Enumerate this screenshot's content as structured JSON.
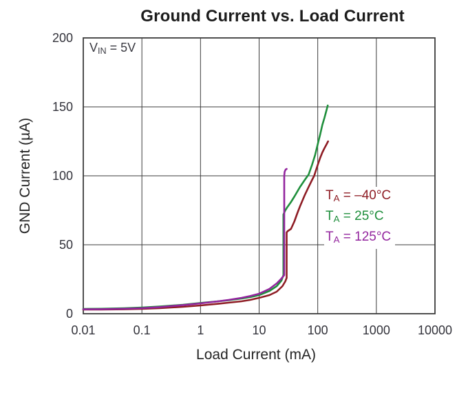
{
  "page": {
    "background": "#ffffff"
  },
  "chart_data": {
    "type": "line",
    "title": "Ground Current vs. Load Current",
    "xlabel": "Load Current (mA)",
    "ylabel": "GND Current (µA)",
    "x_scale": "log",
    "xlim": [
      0.01,
      10000
    ],
    "ylim": [
      0,
      200
    ],
    "x_ticks": [
      0.01,
      0.1,
      1,
      10,
      100,
      1000,
      10000
    ],
    "x_tick_labels": [
      "0.01",
      "0.1",
      "1",
      "10",
      "100",
      "1000",
      "10000"
    ],
    "y_ticks": [
      0,
      50,
      100,
      150,
      200
    ],
    "y_tick_labels": [
      "0",
      "50",
      "100",
      "150",
      "200"
    ],
    "grid": true,
    "legend_position": "inside-right",
    "annotation": {
      "base": "V",
      "sub": "IN",
      "rest": " = 5V"
    },
    "colors": {
      "grid": "#3b3b3b",
      "frame": "#3b3b3b",
      "title_text": "#1c1c1c",
      "axis_text": "#32323a"
    },
    "series": [
      {
        "id": "ta-minus-40",
        "label": {
          "base": "T",
          "sub": "A",
          "rest": " = –40°C"
        },
        "color": "#8e1c24",
        "points": [
          [
            0.01,
            3
          ],
          [
            0.02,
            3
          ],
          [
            0.05,
            3.2
          ],
          [
            0.1,
            3.5
          ],
          [
            0.2,
            4
          ],
          [
            0.5,
            5
          ],
          [
            1,
            6
          ],
          [
            2,
            7.2
          ],
          [
            3,
            8
          ],
          [
            5,
            9
          ],
          [
            7,
            10
          ],
          [
            10,
            11.5
          ],
          [
            15,
            13.5
          ],
          [
            20,
            16
          ],
          [
            25,
            20
          ],
          [
            28,
            23.5
          ],
          [
            29.5,
            26
          ],
          [
            29.5,
            59
          ],
          [
            31,
            60
          ],
          [
            35,
            61.5
          ],
          [
            40,
            67
          ],
          [
            45,
            73
          ],
          [
            50,
            78
          ],
          [
            60,
            86
          ],
          [
            70,
            92
          ],
          [
            80,
            97
          ],
          [
            87,
            100
          ],
          [
            100,
            108
          ],
          [
            110,
            113
          ],
          [
            120,
            117
          ],
          [
            130,
            120
          ],
          [
            140,
            122.5
          ],
          [
            150,
            125
          ]
        ]
      },
      {
        "id": "ta-25",
        "label": {
          "base": "T",
          "sub": "A",
          "rest": " = 25°C"
        },
        "color": "#1f8f3c",
        "points": [
          [
            0.01,
            3.5
          ],
          [
            0.02,
            3.6
          ],
          [
            0.05,
            4
          ],
          [
            0.1,
            4.5
          ],
          [
            0.2,
            5.2
          ],
          [
            0.5,
            6.5
          ],
          [
            1,
            7.8
          ],
          [
            2,
            9
          ],
          [
            3,
            9.8
          ],
          [
            5,
            11
          ],
          [
            7,
            12
          ],
          [
            10,
            13.5
          ],
          [
            15,
            16.5
          ],
          [
            20,
            20
          ],
          [
            24,
            24
          ],
          [
            26,
            28
          ],
          [
            26,
            72
          ],
          [
            28,
            75
          ],
          [
            30,
            77
          ],
          [
            35,
            81
          ],
          [
            40,
            85
          ],
          [
            50,
            92
          ],
          [
            60,
            97
          ],
          [
            70,
            101
          ],
          [
            80,
            108
          ],
          [
            90,
            115
          ],
          [
            100,
            123
          ],
          [
            110,
            130
          ],
          [
            120,
            137
          ],
          [
            130,
            142
          ],
          [
            140,
            147
          ],
          [
            148,
            151
          ]
        ]
      },
      {
        "id": "ta-125",
        "label": {
          "base": "T",
          "sub": "A",
          "rest": " = 125°C"
        },
        "color": "#93259e",
        "points": [
          [
            0.01,
            3.2
          ],
          [
            0.02,
            3.3
          ],
          [
            0.05,
            3.6
          ],
          [
            0.1,
            4
          ],
          [
            0.2,
            4.8
          ],
          [
            0.5,
            6.2
          ],
          [
            1,
            7.5
          ],
          [
            2,
            9
          ],
          [
            3,
            10
          ],
          [
            5,
            11.5
          ],
          [
            7,
            12.8
          ],
          [
            10,
            14.5
          ],
          [
            15,
            18
          ],
          [
            20,
            22
          ],
          [
            24,
            25.5
          ],
          [
            26.8,
            28
          ],
          [
            26.8,
            100
          ],
          [
            27.3,
            103
          ],
          [
            28.3,
            104.5
          ],
          [
            29.5,
            105
          ]
        ]
      }
    ]
  }
}
